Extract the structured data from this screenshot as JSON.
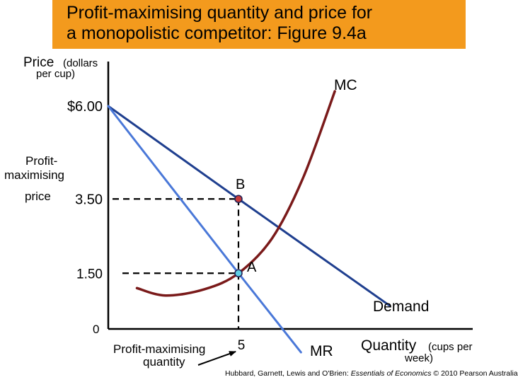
{
  "title": {
    "line1": "Profit-maximising quantity and price for",
    "line2": "a monopolistic competitor: Figure 9.4a",
    "background": "#f39a1d"
  },
  "chart_data": {
    "type": "line",
    "ylabel": {
      "main": "Price",
      "unit": "(dollars",
      "unit2": "per cup)"
    },
    "xlabel": {
      "main": "Quantity",
      "unit": "(cups per",
      "unit2": "week)"
    },
    "origin_label": "0",
    "y_ticks": [
      {
        "value": 6.0,
        "label": "$6.00"
      },
      {
        "value": 3.5,
        "label": "3.50"
      },
      {
        "value": 1.5,
        "label": "1.50"
      }
    ],
    "x_ticks": [
      {
        "value": 5,
        "label": "5"
      }
    ],
    "series": [
      {
        "name": "Demand",
        "color": "#1f3f8f",
        "points": [
          [
            0,
            6.0
          ],
          [
            5,
            3.5
          ],
          [
            10.8,
            0.63
          ]
        ]
      },
      {
        "name": "MR",
        "color": "#4a78d8",
        "points": [
          [
            0,
            6.0
          ],
          [
            5,
            1.5
          ],
          [
            7.4,
            -0.63
          ]
        ]
      },
      {
        "name": "MC",
        "color": "#7a1a1a",
        "points": [
          [
            1.1,
            1.1
          ],
          [
            2.2,
            0.9
          ],
          [
            3.7,
            1.07
          ],
          [
            5,
            1.5
          ],
          [
            6.3,
            2.45
          ],
          [
            7.5,
            4.1
          ],
          [
            8.7,
            6.4
          ]
        ]
      }
    ],
    "points": [
      {
        "label": "B",
        "x": 5,
        "y": 3.5,
        "color": "#c83a3a"
      },
      {
        "label": "A",
        "x": 5,
        "y": 1.5,
        "color": "#5fd0e6"
      }
    ],
    "annotations": {
      "profit_price": [
        "Profit-",
        "maximising",
        "price"
      ],
      "profit_quantity": [
        "Profit-maximising",
        "quantity"
      ]
    }
  },
  "credit": {
    "pre": "Hubbard, Garnett, Lewis and O'Brien: ",
    "book": "Essentials of Economics",
    "post": " © 2010 Pearson Australia"
  }
}
